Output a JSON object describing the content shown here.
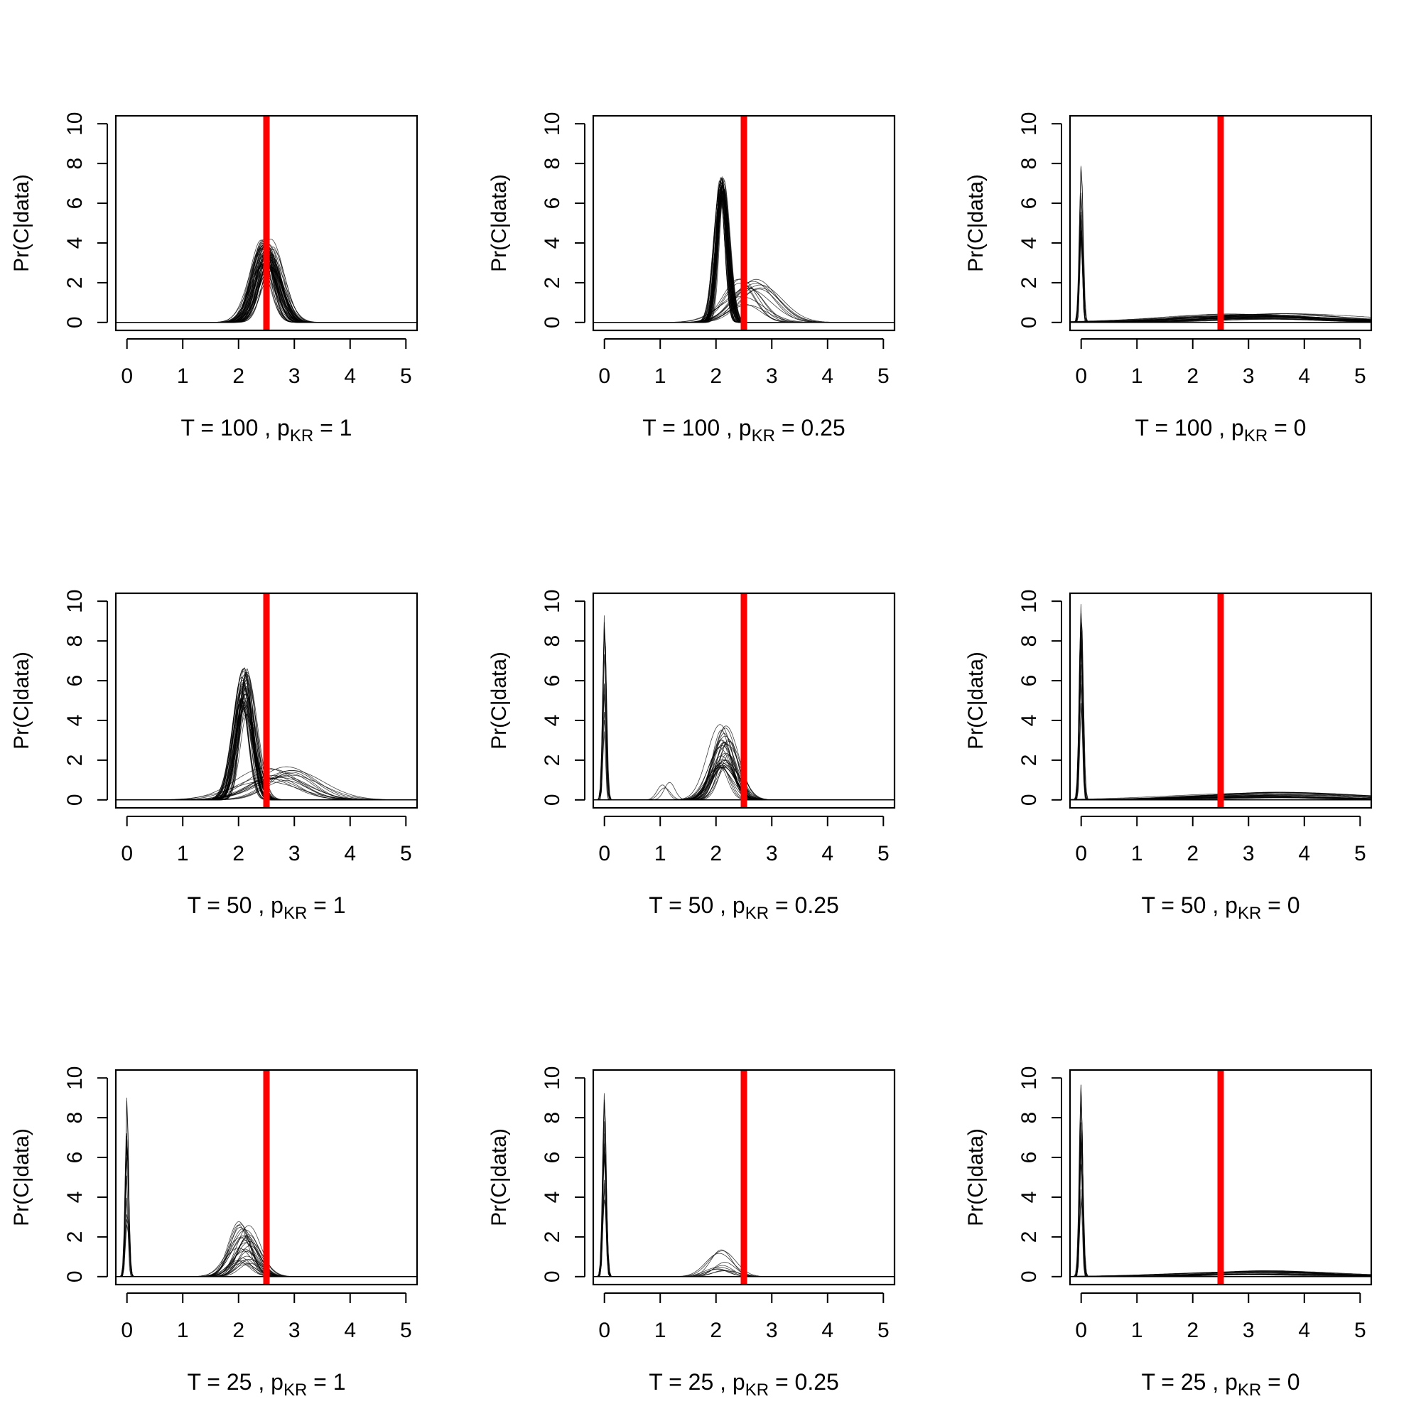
{
  "chart_data": [
    {
      "type": "line",
      "row": 0,
      "col": 0,
      "T": "100",
      "p_label": "p",
      "p_sub": "KR",
      "p_value": "1",
      "xlabel": "T =  100 ,  pKR  =  1",
      "ylabel": "Pr(C|data)",
      "xlim": [
        -0.2,
        5.2
      ],
      "ylim": [
        -0.4,
        10.4
      ],
      "xticks": [
        "0",
        "1",
        "2",
        "3",
        "4",
        "5"
      ],
      "yticks": [
        "0",
        "2",
        "4",
        "6",
        "8",
        "10"
      ],
      "true_value": 2.5,
      "true_value_color": "#ff0000",
      "curve_color": "#000000",
      "series": [
        {
          "name": "main",
          "count": 60,
          "peaks": [
            {
              "mu": 2.5,
              "sigma": 0.2,
              "peak": 3.4,
              "spread_mu": 0.12,
              "spread_peak": 0.8
            }
          ]
        }
      ]
    },
    {
      "type": "line",
      "row": 0,
      "col": 1,
      "T": "100",
      "p_label": "p",
      "p_sub": "KR",
      "p_value": "0.25",
      "xlabel": "T =  100 ,  pKR  =  0.25",
      "ylabel": "Pr(C|data)",
      "xlim": [
        -0.2,
        5.2
      ],
      "ylim": [
        -0.4,
        10.4
      ],
      "xticks": [
        "0",
        "1",
        "2",
        "3",
        "4",
        "5"
      ],
      "yticks": [
        "0",
        "2",
        "4",
        "6",
        "8",
        "10"
      ],
      "true_value": 2.5,
      "true_value_color": "#ff0000",
      "curve_color": "#000000",
      "series": [
        {
          "name": "main",
          "count": 45,
          "peaks": [
            {
              "mu": 2.1,
              "sigma": 0.1,
              "peak": 6.8,
              "spread_mu": 0.04,
              "spread_peak": 0.6
            }
          ]
        },
        {
          "name": "tail",
          "count": 15,
          "peaks": [
            {
              "mu": 2.6,
              "sigma": 0.35,
              "peak": 1.5,
              "spread_mu": 0.2,
              "spread_peak": 0.7
            }
          ]
        }
      ]
    },
    {
      "type": "line",
      "row": 0,
      "col": 2,
      "T": "100",
      "p_label": "p",
      "p_sub": "KR",
      "p_value": "0",
      "xlabel": "T =  100 ,  pKR  =  0",
      "ylabel": "Pr(C|data)",
      "xlim": [
        -0.2,
        5.2
      ],
      "ylim": [
        -0.4,
        10.4
      ],
      "xticks": [
        "0",
        "1",
        "2",
        "3",
        "4",
        "5"
      ],
      "yticks": [
        "0",
        "2",
        "4",
        "6",
        "8",
        "10"
      ],
      "true_value": 2.5,
      "true_value_color": "#ff0000",
      "curve_color": "#000000",
      "series": [
        {
          "name": "spike",
          "count": 12,
          "peaks": [
            {
              "mu": 0.0,
              "sigma": 0.03,
              "peak": 7.0,
              "spread_mu": 0.005,
              "spread_peak": 3.0
            }
          ]
        },
        {
          "name": "flat",
          "count": 30,
          "peaks": [
            {
              "mu": 3.2,
              "sigma": 1.2,
              "peak": 0.3,
              "spread_mu": 0.6,
              "spread_peak": 0.15
            }
          ]
        }
      ]
    },
    {
      "type": "line",
      "row": 1,
      "col": 0,
      "T": "50",
      "p_label": "p",
      "p_sub": "KR",
      "p_value": "1",
      "xlabel": "T =  50 ,  pKR  =  1",
      "ylabel": "Pr(C|data)",
      "xlim": [
        -0.2,
        5.2
      ],
      "ylim": [
        -0.4,
        10.4
      ],
      "xticks": [
        "0",
        "1",
        "2",
        "3",
        "4",
        "5"
      ],
      "yticks": [
        "0",
        "2",
        "4",
        "6",
        "8",
        "10"
      ],
      "true_value": 2.5,
      "true_value_color": "#ff0000",
      "curve_color": "#000000",
      "series": [
        {
          "name": "main",
          "count": 45,
          "peaks": [
            {
              "mu": 2.1,
              "sigma": 0.15,
              "peak": 5.5,
              "spread_mu": 0.06,
              "spread_peak": 1.2
            }
          ]
        },
        {
          "name": "tail",
          "count": 15,
          "peaks": [
            {
              "mu": 2.7,
              "sigma": 0.5,
              "peak": 1.2,
              "spread_mu": 0.3,
              "spread_peak": 0.5
            }
          ]
        }
      ]
    },
    {
      "type": "line",
      "row": 1,
      "col": 1,
      "T": "50",
      "p_label": "p",
      "p_sub": "KR",
      "p_value": "0.25",
      "xlabel": "T =  50 ,  pKR  =  0.25",
      "ylabel": "Pr(C|data)",
      "xlim": [
        -0.2,
        5.2
      ],
      "ylim": [
        -0.4,
        10.4
      ],
      "xticks": [
        "0",
        "1",
        "2",
        "3",
        "4",
        "5"
      ],
      "yticks": [
        "0",
        "2",
        "4",
        "6",
        "8",
        "10"
      ],
      "true_value": 2.5,
      "true_value_color": "#ff0000",
      "curve_color": "#000000",
      "series": [
        {
          "name": "spike",
          "count": 12,
          "peaks": [
            {
              "mu": 0.0,
              "sigma": 0.03,
              "peak": 6.0,
              "spread_mu": 0.005,
              "spread_peak": 3.5
            }
          ]
        },
        {
          "name": "main",
          "count": 35,
          "peaks": [
            {
              "mu": 2.15,
              "sigma": 0.2,
              "peak": 2.8,
              "spread_mu": 0.1,
              "spread_peak": 1.2
            }
          ]
        },
        {
          "name": "minor",
          "count": 3,
          "peaks": [
            {
              "mu": 1.1,
              "sigma": 0.1,
              "peak": 0.7,
              "spread_mu": 0.1,
              "spread_peak": 0.2
            }
          ]
        }
      ]
    },
    {
      "type": "line",
      "row": 1,
      "col": 2,
      "T": "50",
      "p_label": "p",
      "p_sub": "KR",
      "p_value": "0",
      "xlabel": "T =  50 ,  pKR  =  0",
      "ylabel": "Pr(C|data)",
      "xlim": [
        -0.2,
        5.2
      ],
      "ylim": [
        -0.4,
        10.4
      ],
      "xticks": [
        "0",
        "1",
        "2",
        "3",
        "4",
        "5"
      ],
      "yticks": [
        "0",
        "2",
        "4",
        "6",
        "8",
        "10"
      ],
      "true_value": 2.5,
      "true_value_color": "#ff0000",
      "curve_color": "#000000",
      "series": [
        {
          "name": "spike",
          "count": 14,
          "peaks": [
            {
              "mu": 0.0,
              "sigma": 0.03,
              "peak": 7.0,
              "spread_mu": 0.005,
              "spread_peak": 3.0
            }
          ]
        },
        {
          "name": "flat",
          "count": 25,
          "peaks": [
            {
              "mu": 3.4,
              "sigma": 1.2,
              "peak": 0.25,
              "spread_mu": 0.6,
              "spread_peak": 0.15
            }
          ]
        }
      ]
    },
    {
      "type": "line",
      "row": 2,
      "col": 0,
      "T": "25",
      "p_label": "p",
      "p_sub": "KR",
      "p_value": "1",
      "xlabel": "T =  25 ,  pKR  =  1",
      "ylabel": "Pr(C|data)",
      "xlim": [
        -0.2,
        5.2
      ],
      "ylim": [
        -0.4,
        10.4
      ],
      "xticks": [
        "0",
        "1",
        "2",
        "3",
        "4",
        "5"
      ],
      "yticks": [
        "0",
        "2",
        "4",
        "6",
        "8",
        "10"
      ],
      "true_value": 2.5,
      "true_value_color": "#ff0000",
      "curve_color": "#000000",
      "series": [
        {
          "name": "spike",
          "count": 14,
          "peaks": [
            {
              "mu": 0.0,
              "sigma": 0.03,
              "peak": 6.0,
              "spread_mu": 0.005,
              "spread_peak": 3.5
            }
          ]
        },
        {
          "name": "main",
          "count": 30,
          "peaks": [
            {
              "mu": 2.1,
              "sigma": 0.2,
              "peak": 1.8,
              "spread_mu": 0.12,
              "spread_peak": 1.2
            }
          ]
        }
      ]
    },
    {
      "type": "line",
      "row": 2,
      "col": 1,
      "T": "25",
      "p_label": "p",
      "p_sub": "KR",
      "p_value": "0.25",
      "xlabel": "T =  25 ,  pKR  =  0.25",
      "ylabel": "Pr(C|data)",
      "xlim": [
        -0.2,
        5.2
      ],
      "ylim": [
        -0.4,
        10.4
      ],
      "xticks": [
        "0",
        "1",
        "2",
        "3",
        "4",
        "5"
      ],
      "yticks": [
        "0",
        "2",
        "4",
        "6",
        "8",
        "10"
      ],
      "true_value": 2.5,
      "true_value_color": "#ff0000",
      "curve_color": "#000000",
      "series": [
        {
          "name": "spike",
          "count": 14,
          "peaks": [
            {
              "mu": 0.0,
              "sigma": 0.03,
              "peak": 6.5,
              "spread_mu": 0.005,
              "spread_peak": 3.0
            }
          ]
        },
        {
          "name": "main",
          "count": 10,
          "peaks": [
            {
              "mu": 2.1,
              "sigma": 0.2,
              "peak": 0.8,
              "spread_mu": 0.1,
              "spread_peak": 0.6
            }
          ]
        }
      ]
    },
    {
      "type": "line",
      "row": 2,
      "col": 2,
      "T": "25",
      "p_label": "p",
      "p_sub": "KR",
      "p_value": "0",
      "xlabel": "T =  25 ,  pKR  =  0",
      "ylabel": "Pr(C|data)",
      "xlim": [
        -0.2,
        5.2
      ],
      "ylim": [
        -0.4,
        10.4
      ],
      "xticks": [
        "0",
        "1",
        "2",
        "3",
        "4",
        "5"
      ],
      "yticks": [
        "0",
        "2",
        "4",
        "6",
        "8",
        "10"
      ],
      "true_value": 2.5,
      "true_value_color": "#ff0000",
      "curve_color": "#000000",
      "series": [
        {
          "name": "spike",
          "count": 14,
          "peaks": [
            {
              "mu": 0.0,
              "sigma": 0.03,
              "peak": 7.0,
              "spread_mu": 0.005,
              "spread_peak": 3.0
            }
          ]
        },
        {
          "name": "flat",
          "count": 20,
          "peaks": [
            {
              "mu": 3.2,
              "sigma": 1.2,
              "peak": 0.2,
              "spread_mu": 0.6,
              "spread_peak": 0.12
            }
          ]
        }
      ]
    }
  ]
}
